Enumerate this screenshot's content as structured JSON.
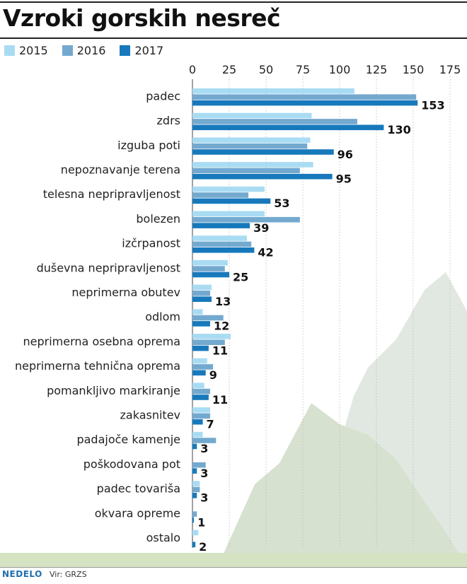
{
  "header": {
    "title": "Vzroki gorskih nesreč"
  },
  "footer": {
    "logo": "NEDELO",
    "source": "Vir: GRZS"
  },
  "colors": {
    "2015": "#a9dcf3",
    "2016": "#74a9cf",
    "2017": "#1779bc",
    "mountain_back": "#e1e7e1",
    "mountain_front": "#d7e1cf",
    "ground": "#d5e3c3"
  },
  "chart_data": {
    "type": "bar",
    "orientation": "horizontal",
    "title": "Vzroki gorskih nesreč",
    "xlabel": "",
    "ylabel": "",
    "xlim": [
      0,
      185
    ],
    "xticks": [
      0,
      25,
      50,
      75,
      100,
      125,
      150,
      175
    ],
    "grid": true,
    "legend_position": "top-left",
    "categories": [
      "padec",
      "zdrs",
      "izguba poti",
      "nepoznavanje terena",
      "telesna nepripravljenost",
      "bolezen",
      "izčrpanost",
      "duševna nepripravljenost",
      "neprimerna obutev",
      "odlom",
      "neprimerna osebna oprema",
      "neprimerna tehnična oprema",
      "pomankljivo markiranje",
      "zakasnitev",
      "padajoče kamenje",
      "poškodovana pot",
      "padec tovariša",
      "okvara opreme",
      "ostalo"
    ],
    "series": [
      {
        "name": "2015",
        "values": [
          110,
          81,
          80,
          82,
          49,
          49,
          37,
          24,
          13,
          7,
          26,
          10,
          8,
          12,
          7,
          0,
          5,
          0,
          4
        ]
      },
      {
        "name": "2016",
        "values": [
          152,
          112,
          78,
          73,
          38,
          73,
          40,
          22,
          12,
          21,
          22,
          14,
          12,
          12,
          16,
          9,
          5,
          3,
          0
        ]
      },
      {
        "name": "2017",
        "values": [
          153,
          130,
          96,
          95,
          53,
          39,
          42,
          25,
          13,
          12,
          11,
          9,
          11,
          7,
          3,
          3,
          3,
          1,
          2
        ]
      }
    ],
    "data_labels": [
      "153",
      "130",
      "96",
      "95",
      "53",
      "39",
      "42",
      "25",
      "13",
      "12",
      "11",
      "9",
      "11",
      "7",
      "3",
      "3",
      "3",
      "1",
      "2"
    ]
  }
}
